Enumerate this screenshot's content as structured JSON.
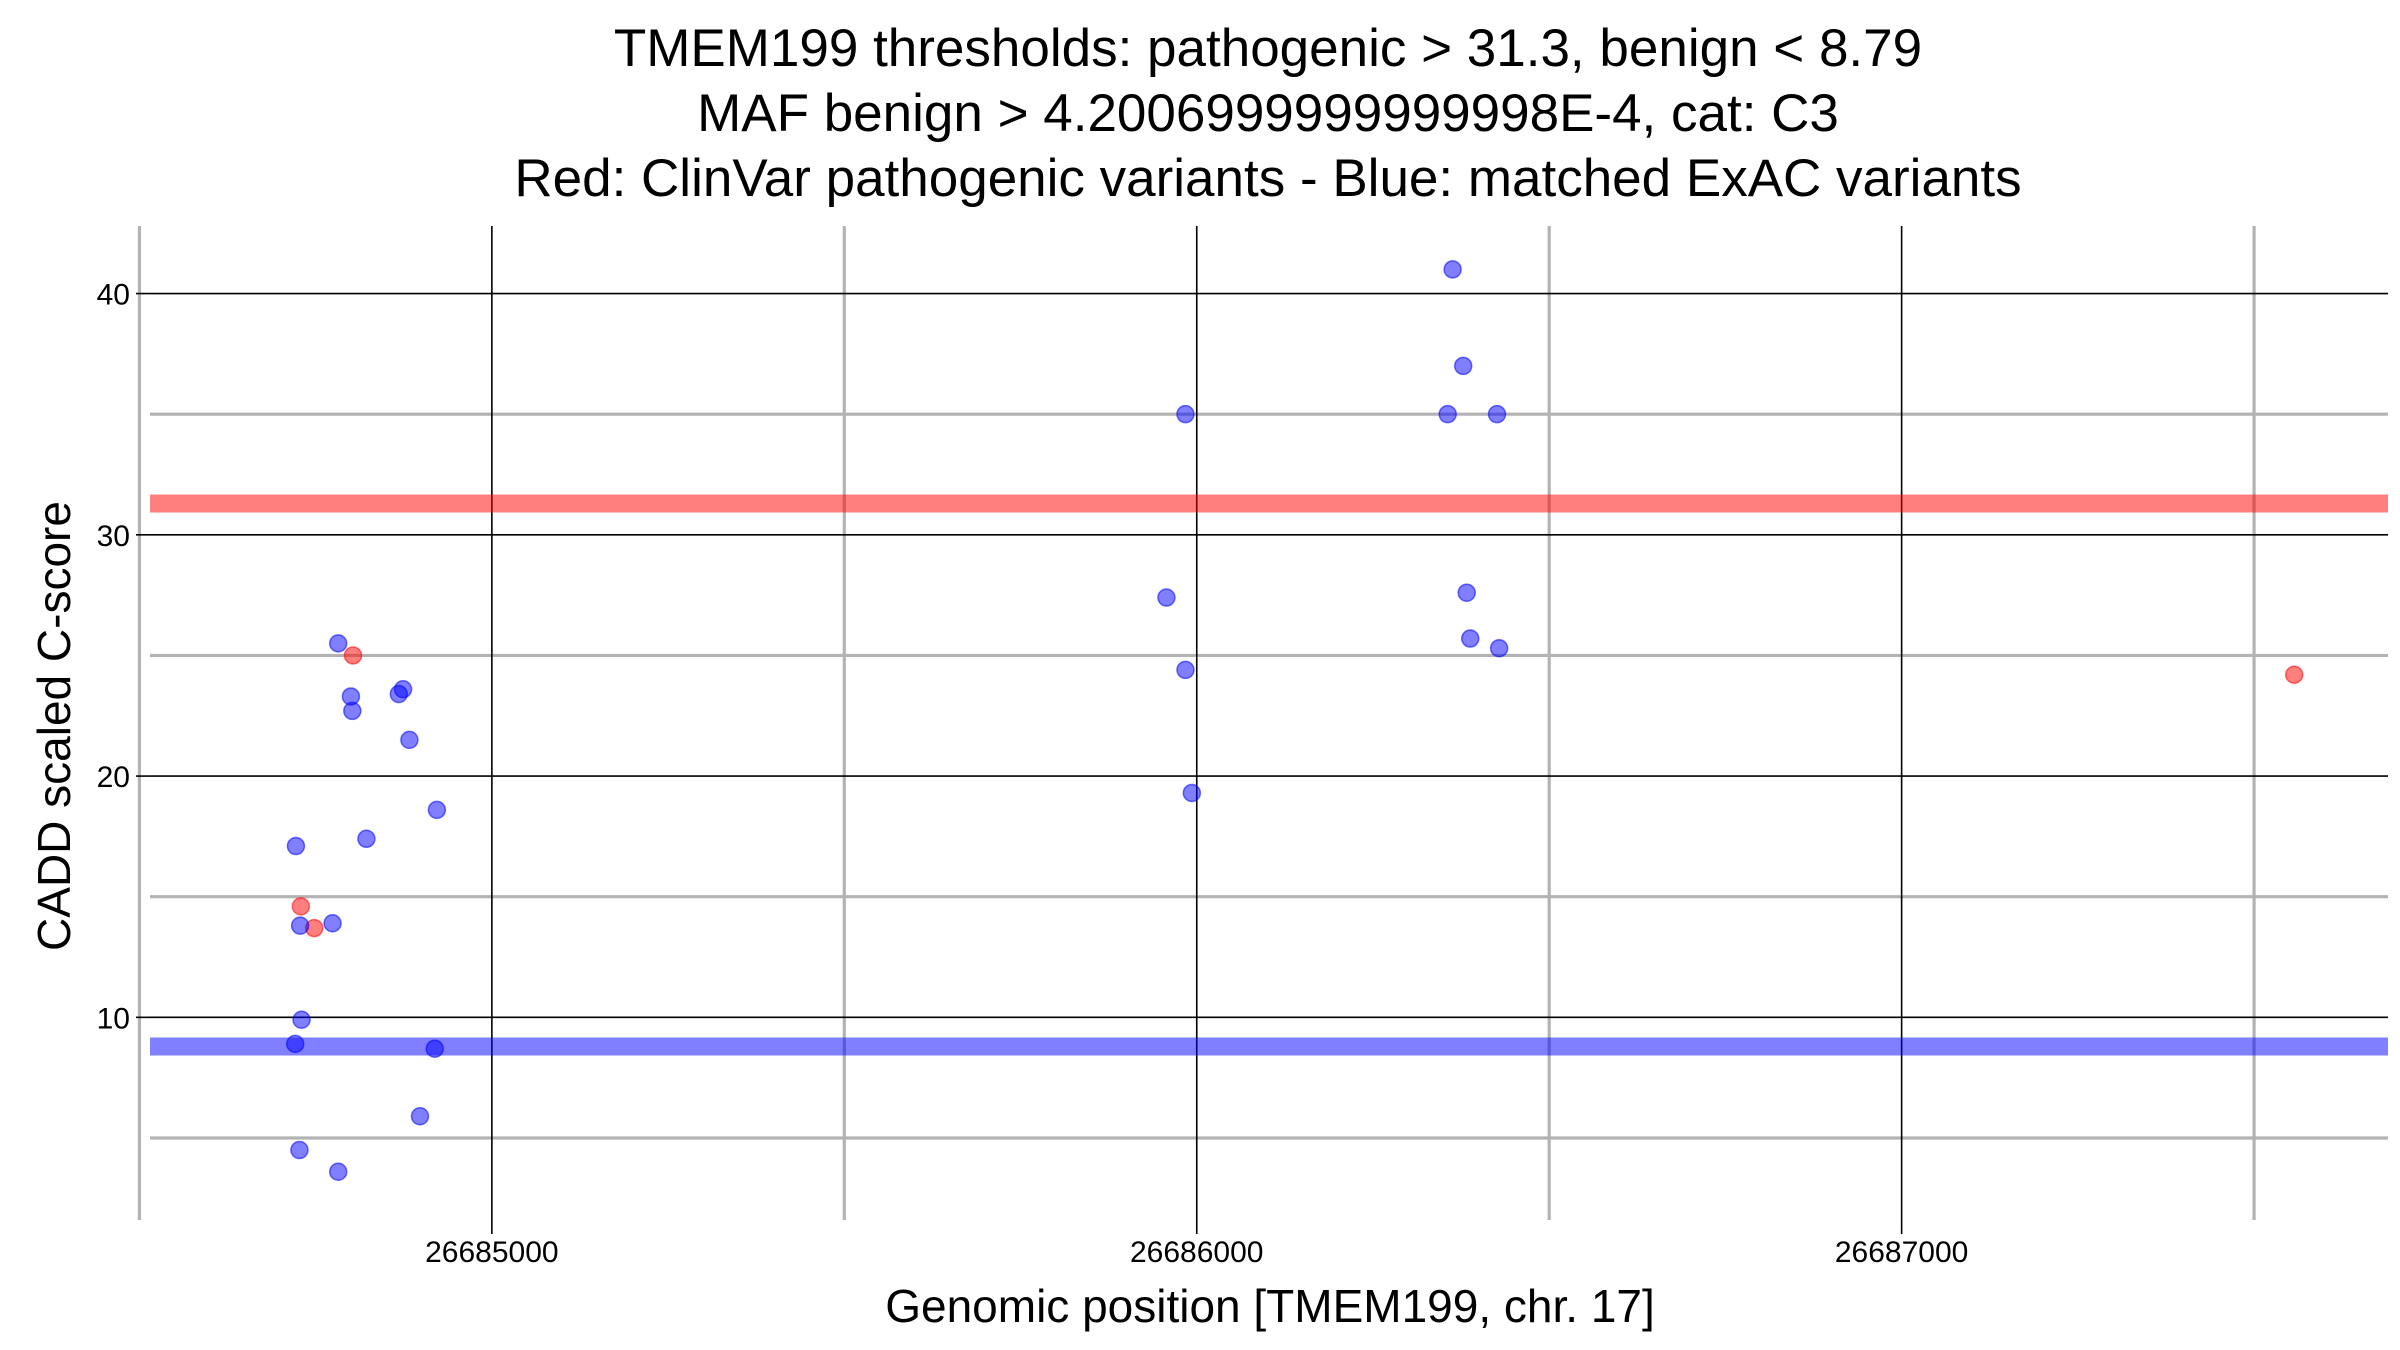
{
  "chart_data": {
    "type": "scatter",
    "title_lines": [
      "TMEM199 thresholds: pathogenic > 31.3, benign < 8.79",
      "MAF benign > 4.2006999999999998E-4, cat: C3",
      "Red: ClinVar pathogenic variants - Blue: matched ExAC variants"
    ],
    "xlabel": "Genomic position [TMEM199, chr. 17]",
    "ylabel": "CADD scaled C-score",
    "xlim": [
      26684515,
      26687690
    ],
    "ylim": [
      1.6,
      42.8
    ],
    "x_ticks": [
      26685000,
      26686000,
      26687000
    ],
    "x_tick_labels": [
      "26685000",
      "26686000",
      "26687000"
    ],
    "x_minor": [
      26684500,
      26685500,
      26686500,
      26687500
    ],
    "y_ticks": [
      10,
      20,
      30,
      40
    ],
    "y_tick_labels": [
      "10",
      "20",
      "30",
      "40"
    ],
    "y_minor": [
      5,
      15,
      25,
      35
    ],
    "thresholds": [
      {
        "name": "pathogenic",
        "value": 31.3,
        "color": "#ff0000"
      },
      {
        "name": "benign",
        "value": 8.79,
        "color": "#0000ff"
      }
    ],
    "colors": {
      "pathogenic": "#ff0000",
      "benign": "#0000ff",
      "grid_major": "#000000",
      "grid_minor": "#b3b3b3"
    },
    "series": [
      {
        "name": "ClinVar pathogenic variants",
        "color": "#ff0000",
        "points": [
          [
            26684729,
            14.6
          ],
          [
            26684748,
            13.7
          ],
          [
            26684803,
            25.0
          ],
          [
            26687557,
            24.2
          ]
        ]
      },
      {
        "name": "matched ExAC variants",
        "color": "#0000ff",
        "points": [
          [
            26684782,
            25.5
          ],
          [
            26684800,
            23.3
          ],
          [
            26684802,
            22.7
          ],
          [
            26684868,
            23.4
          ],
          [
            26684874,
            23.6
          ],
          [
            26684883,
            21.5
          ],
          [
            26684822,
            17.4
          ],
          [
            26684922,
            18.6
          ],
          [
            26684722,
            17.1
          ],
          [
            26684728,
            13.8
          ],
          [
            26684774,
            13.9
          ],
          [
            26684730,
            9.9
          ],
          [
            26684721,
            8.9
          ],
          [
            26684919,
            8.7
          ],
          [
            26684898,
            5.9
          ],
          [
            26684727,
            4.5
          ],
          [
            26684782,
            3.6
          ],
          [
            26685984,
            35.0
          ],
          [
            26685957,
            27.4
          ],
          [
            26685984,
            24.4
          ],
          [
            26685993,
            19.3
          ],
          [
            26686363,
            41.0
          ],
          [
            26686378,
            37.0
          ],
          [
            26686356,
            35.0
          ],
          [
            26686426,
            35.0
          ],
          [
            26686383,
            27.6
          ],
          [
            26686388,
            25.7
          ],
          [
            26686429,
            25.3
          ]
        ]
      }
    ]
  }
}
